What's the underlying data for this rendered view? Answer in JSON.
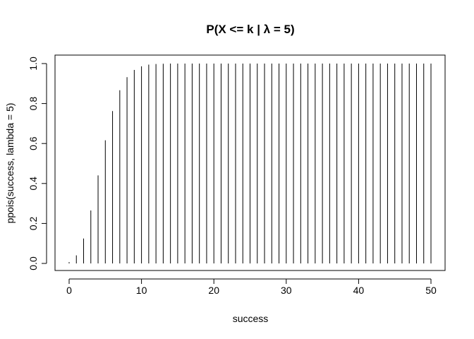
{
  "chart_data": {
    "type": "bar",
    "style": "histogram-lines",
    "title": "P(X <=  k | λ = 5)",
    "xlabel": "success",
    "ylabel": "ppois(success, lambda = 5)",
    "xlim": [
      0,
      50
    ],
    "ylim": [
      0,
      1
    ],
    "x_ticks": [
      0,
      10,
      20,
      30,
      40,
      50
    ],
    "y_ticks": [
      0.0,
      0.2,
      0.4,
      0.6,
      0.8,
      1.0
    ],
    "x_tick_labels": [
      "0",
      "10",
      "20",
      "30",
      "40",
      "50"
    ],
    "y_tick_labels": [
      "0.0",
      "0.2",
      "0.4",
      "0.6",
      "0.8",
      "1.0"
    ],
    "grid": false,
    "x": [
      0,
      1,
      2,
      3,
      4,
      5,
      6,
      7,
      8,
      9,
      10,
      11,
      12,
      13,
      14,
      15,
      16,
      17,
      18,
      19,
      20,
      21,
      22,
      23,
      24,
      25,
      26,
      27,
      28,
      29,
      30,
      31,
      32,
      33,
      34,
      35,
      36,
      37,
      38,
      39,
      40,
      41,
      42,
      43,
      44,
      45,
      46,
      47,
      48,
      49,
      50
    ],
    "values": [
      0.0067,
      0.0404,
      0.1247,
      0.265,
      0.4405,
      0.616,
      0.7622,
      0.8666,
      0.9319,
      0.9682,
      0.9863,
      0.9945,
      0.998,
      0.9993,
      0.9998,
      0.9999,
      1.0,
      1.0,
      1.0,
      1.0,
      1.0,
      1.0,
      1.0,
      1.0,
      1.0,
      1.0,
      1.0,
      1.0,
      1.0,
      1.0,
      1.0,
      1.0,
      1.0,
      1.0,
      1.0,
      1.0,
      1.0,
      1.0,
      1.0,
      1.0,
      1.0,
      1.0,
      1.0,
      1.0,
      1.0,
      1.0,
      1.0,
      1.0,
      1.0,
      1.0,
      1.0
    ],
    "line_color": "#000000"
  }
}
